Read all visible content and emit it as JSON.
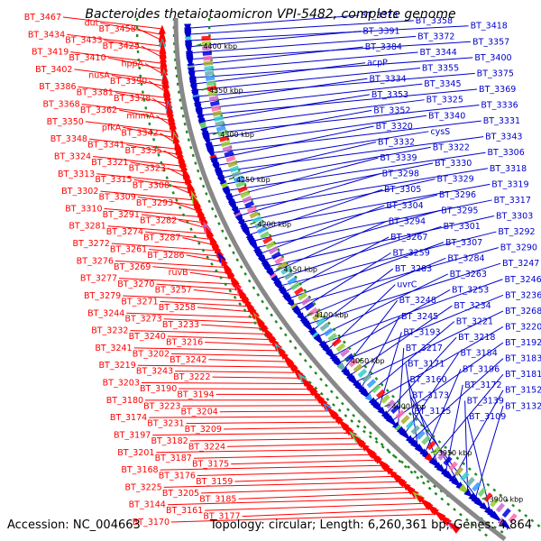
{
  "title": "Bacteroides thetaiotaomicron VPI-5482, complete genome",
  "accession_label": "Accession:",
  "accession": "NC_004663",
  "topology_label": "Topology:",
  "topology": "circular",
  "length_label": "Length:",
  "length": "6,260,361 bp",
  "genes_label": "Genes:",
  "genes": "4,864",
  "colors": {
    "reverse": "#ff0000",
    "forward": "#0000cc",
    "backbone": "#888888",
    "ticks": "#228822"
  },
  "ticks": [
    "4400 kbp",
    "4350 kbp",
    "4300 kbp",
    "4250 kbp",
    "4200 kbp",
    "4150 kbp",
    "4100 kbp",
    "4050 kbp",
    "4000 kbp",
    "3950 kbp",
    "3900 kbp"
  ],
  "reverse_genes": [
    "BT_3467",
    "dut",
    "BT_3458",
    "BT_3434",
    "BT_3433",
    "BT_3425",
    "BT_3419",
    "BT_3410",
    "hppA",
    "BT_3402",
    "nusA",
    "BT_3390",
    "BT_3386",
    "BT_3381",
    "BT_3378",
    "BT_3368",
    "BT_3362",
    "mnmA",
    "BT_3350",
    "pfkA",
    "BT_3342",
    "BT_3348",
    "BT_3341",
    "BT_3335",
    "BT_3324",
    "BT_3321",
    "BT_3323",
    "BT_3313",
    "BT_3315",
    "BT_3308",
    "BT_3302",
    "BT_3309",
    "BT_3293",
    "BT_3310",
    "BT_3291",
    "BT_3282",
    "BT_3281",
    "BT_3274",
    "BT_3287",
    "BT_3272",
    "BT_3261",
    "BT_3286",
    "BT_3276",
    "BT_3269",
    "ruvB",
    "BT_3277",
    "BT_3270",
    "BT_3257",
    "BT_3279",
    "BT_3271",
    "BT_3258",
    "BT_3244",
    "BT_3273",
    "BT_3233",
    "BT_3232",
    "BT_3240",
    "BT_3216",
    "BT_3241",
    "BT_3202",
    "BT_3242",
    "BT_3219",
    "BT_3243",
    "BT_3222",
    "BT_3203",
    "BT_3190",
    "BT_3194",
    "BT_3180",
    "BT_3223",
    "BT_3204",
    "BT_3174",
    "BT_3231",
    "BT_3209",
    "BT_3197",
    "BT_3182",
    "BT_3224",
    "BT_3201",
    "BT_3187",
    "BT_3175",
    "BT_3168",
    "BT_3176",
    "BT_3159",
    "BT_3225",
    "BT_3205",
    "BT_3185",
    "BT_3144",
    "BT_3161",
    "BT_3177",
    "BT_3170"
  ],
  "forward_genes": [
    "BT_3373",
    "BT_3358",
    "BT_3418",
    "BT_3391",
    "BT_3372",
    "BT_3357",
    "BT_3384",
    "BT_3344",
    "BT_3400",
    "acpP",
    "BT_3355",
    "BT_3375",
    "BT_3334",
    "BT_3345",
    "BT_3369",
    "BT_3353",
    "BT_3325",
    "BT_3336",
    "BT_3352",
    "BT_3340",
    "BT_3331",
    "BT_3320",
    "cysS",
    "BT_3343",
    "BT_3332",
    "BT_3322",
    "BT_3306",
    "BT_3339",
    "BT_3330",
    "BT_3318",
    "BT_3298",
    "BT_3329",
    "BT_3319",
    "BT_3305",
    "BT_3296",
    "BT_3317",
    "BT_3304",
    "BT_3295",
    "BT_3303",
    "BT_3294",
    "BT_3301",
    "BT_3292",
    "BT_3267",
    "BT_3307",
    "BT_3290",
    "BT_3259",
    "BT_3284",
    "BT_3247",
    "BT_3283",
    "BT_3263",
    "BT_3246",
    "uvrC",
    "BT_3253",
    "BT_3236",
    "BT_3248",
    "BT_3234",
    "BT_3268",
    "BT_3245",
    "BT_3221",
    "BT_3220",
    "BT_3193",
    "BT_3218",
    "BT_3192",
    "BT_3217",
    "BT_3184",
    "BT_3183",
    "BT_3171",
    "BT_3196",
    "BT_3181",
    "BT_3160",
    "BT_3172",
    "BT_3152",
    "BT_3173",
    "BT_3139",
    "BT_3132",
    "BT_3125",
    "BT_3109"
  ]
}
